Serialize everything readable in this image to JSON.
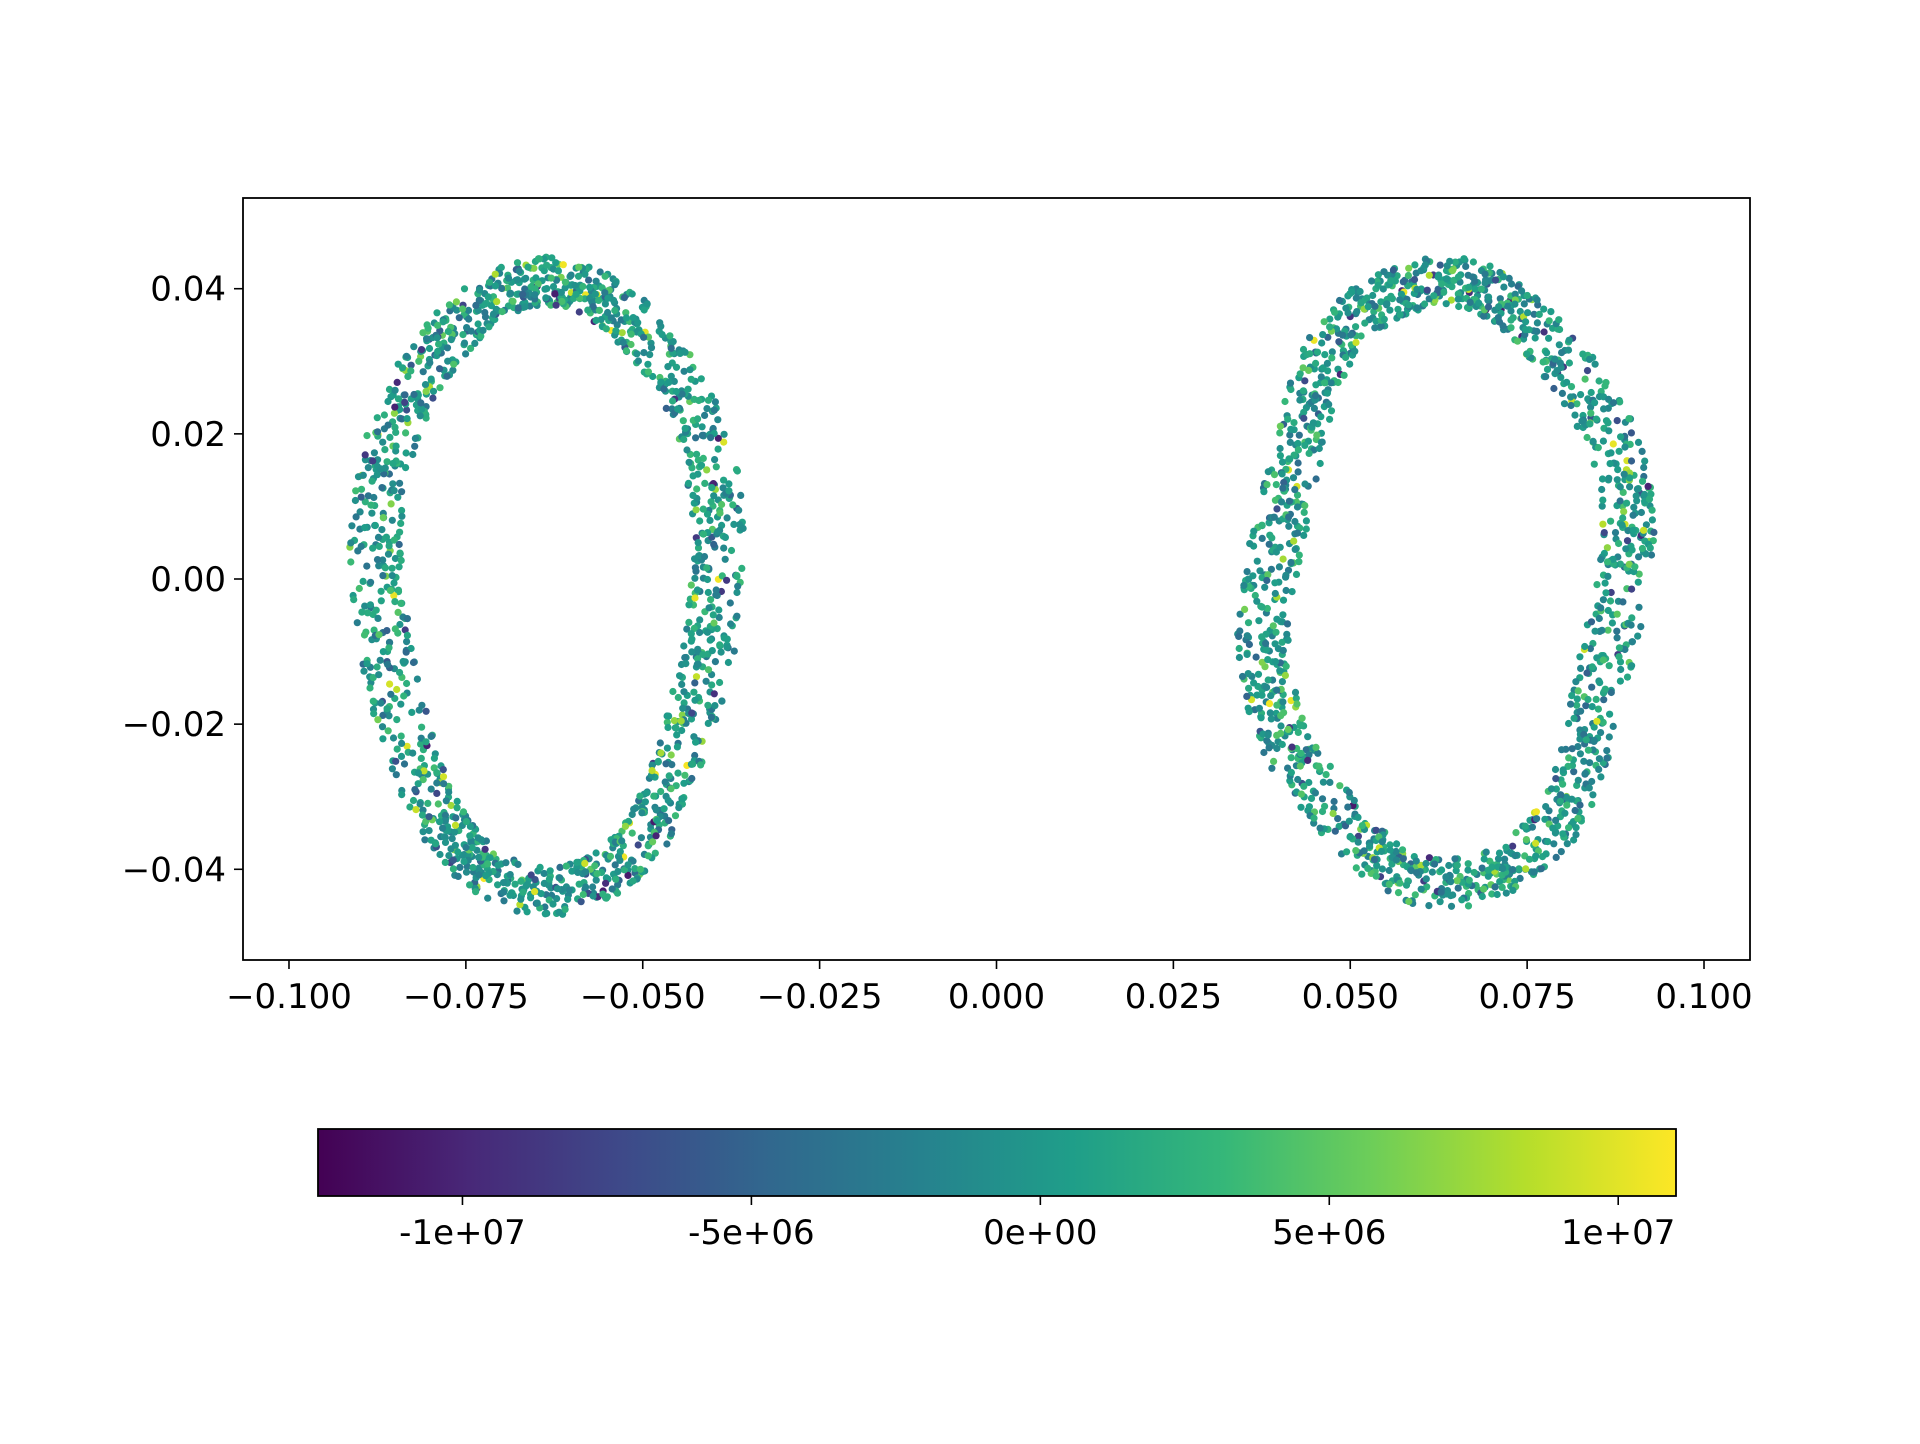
{
  "chart_data": {
    "type": "scatter",
    "title": "",
    "xlabel": "",
    "ylabel": "",
    "xlim": [
      -0.1065,
      0.1065
    ],
    "ylim": [
      -0.0525,
      0.0525
    ],
    "x_ticks": [
      -0.1,
      -0.075,
      -0.05,
      -0.025,
      0.0,
      0.025,
      0.05,
      0.075,
      0.1
    ],
    "x_tick_labels": [
      "−0.100",
      "−0.075",
      "−0.050",
      "−0.025",
      "0.000",
      "0.025",
      "0.050",
      "0.075",
      "0.100"
    ],
    "y_ticks": [
      0.04,
      0.02,
      0.0,
      -0.02,
      -0.04
    ],
    "y_tick_labels": [
      "0.04",
      "0.02",
      "0.00",
      "−0.02",
      "−0.04"
    ],
    "grid": false,
    "legend": "none",
    "colormap": "viridis",
    "colormap_stops": [
      "#440154",
      "#482878",
      "#3e4989",
      "#31688e",
      "#26828e",
      "#1f9e89",
      "#35b779",
      "#6ece58",
      "#b5de2b",
      "#fde725"
    ],
    "colorbar": {
      "orientation": "horizontal",
      "placement": "bottom",
      "range": [
        -12500000,
        11000000
      ],
      "ticks": [
        -10000000,
        -5000000,
        0,
        5000000,
        10000000
      ],
      "tick_labels": [
        "-1e+07",
        "-5e+06",
        "0e+00",
        "5e+06",
        "1e+07"
      ]
    },
    "series": [
      {
        "ring": "left",
        "center_x": -0.0635,
        "center_y": -0.001,
        "semi_axis_x": 0.024,
        "semi_axis_y": 0.042,
        "band_thickness": 0.0075,
        "color_value_typical": 0,
        "color_value_spread": 4000000
      },
      {
        "ring": "right",
        "center_x": 0.0635,
        "center_y": -0.0005,
        "semi_axis_x": 0.025,
        "semi_axis_y": 0.0415,
        "band_thickness": 0.0075,
        "color_value_typical": 0,
        "color_value_spread": 4000000
      }
    ]
  }
}
